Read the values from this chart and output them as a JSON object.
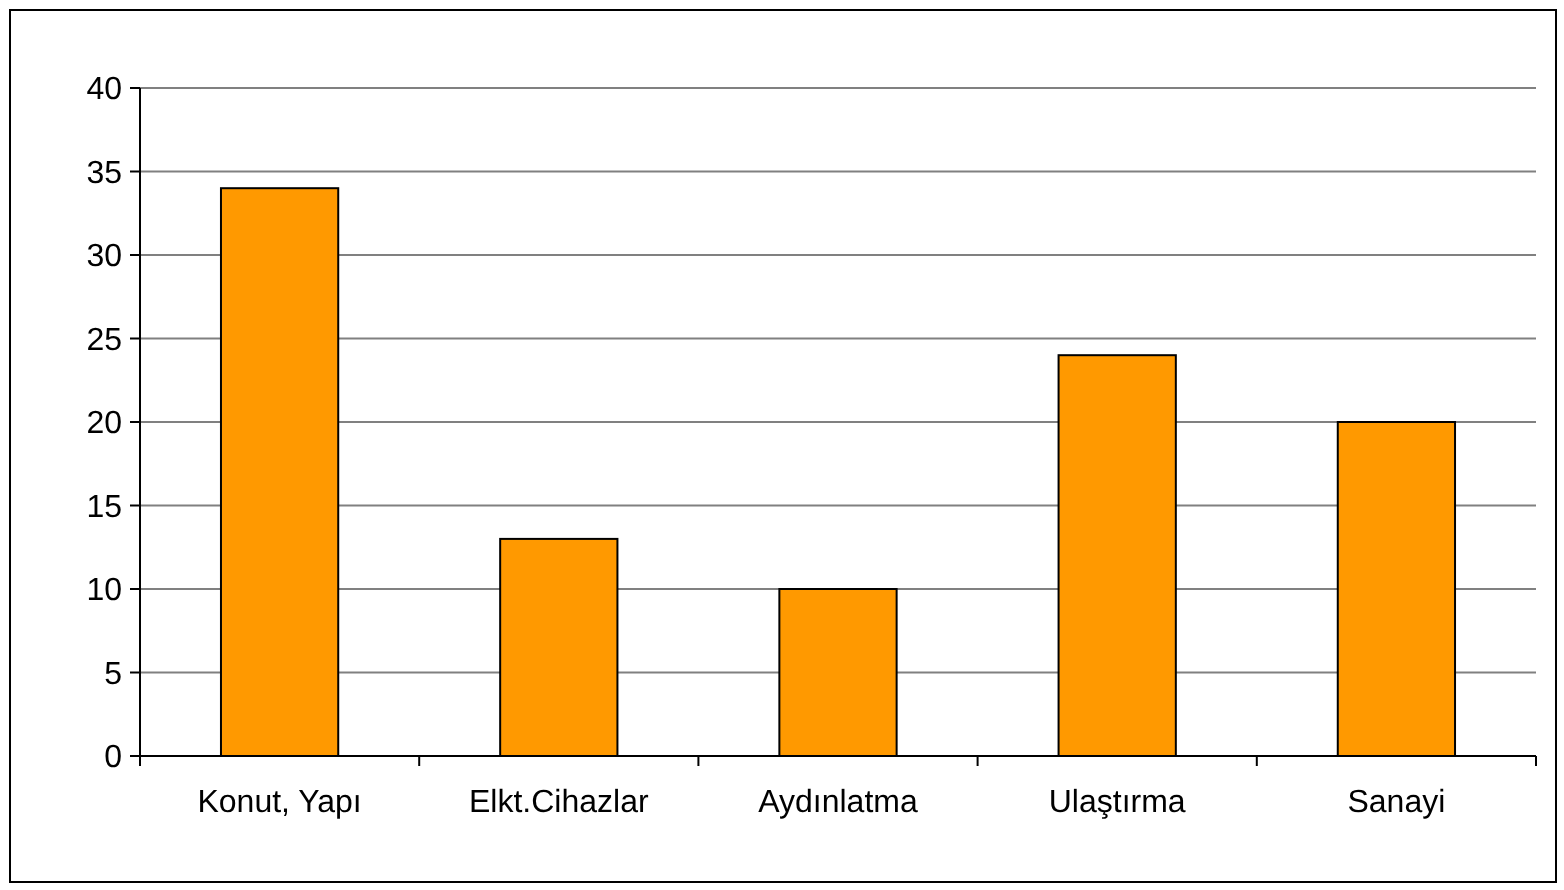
{
  "chart_data": {
    "type": "bar",
    "categories": [
      "Konut, Yapı",
      "Elkt.Cihazlar",
      "Aydınlatma",
      "Ulaştırma",
      "Sanayi"
    ],
    "values": [
      34,
      13,
      10,
      24,
      20
    ],
    "color": "#ff9900",
    "ylim": [
      0,
      40
    ],
    "yticks": [
      0,
      5,
      10,
      15,
      20,
      25,
      30,
      35,
      40
    ],
    "grid": "y"
  }
}
